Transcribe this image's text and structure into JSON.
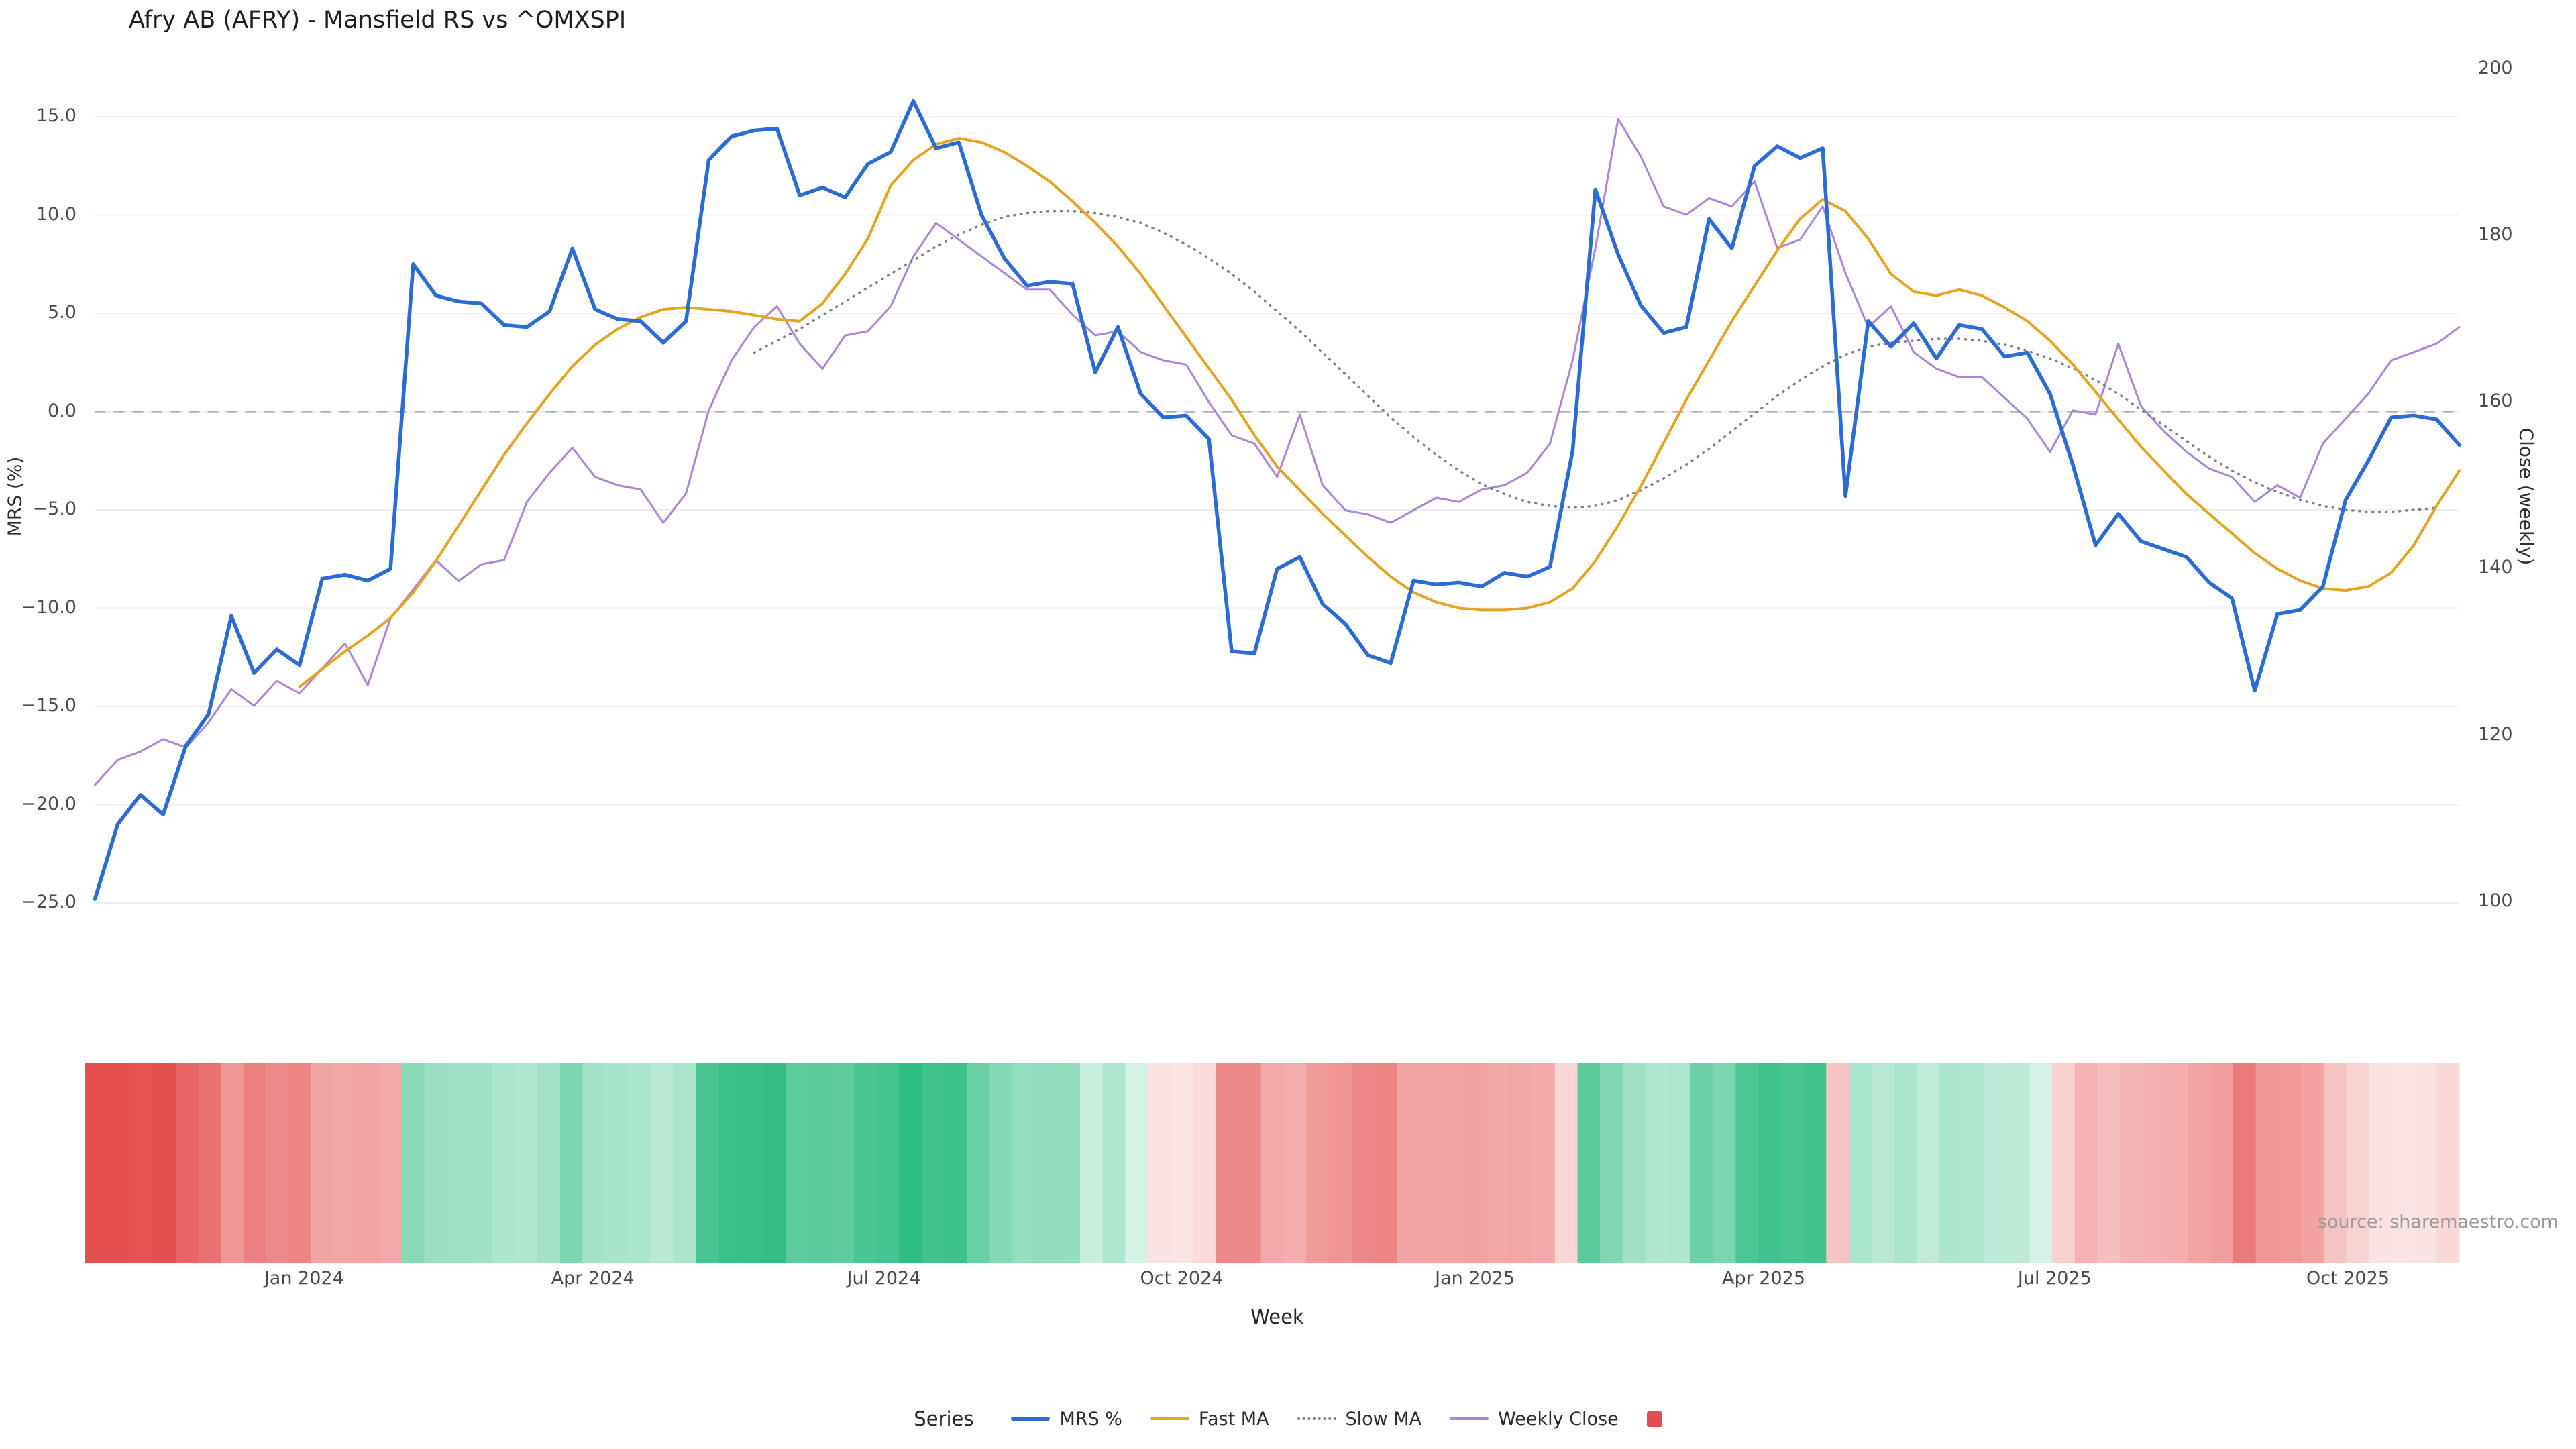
{
  "title": "Afry AB (AFRY) - Mansfield RS vs ^OMXSPI",
  "source_note": "source: sharemaestro.com",
  "legend": {
    "title": "Series",
    "items": [
      {
        "label": "MRS %",
        "swatch": "line",
        "color": "#2a6bd4",
        "thickness": 6
      },
      {
        "label": "Fast MA",
        "swatch": "line",
        "color": "#e6a323",
        "thickness": 4
      },
      {
        "label": "Slow MA",
        "swatch": "dotted-line",
        "color": "#7f7f7f",
        "thickness": 4
      },
      {
        "label": "Weekly Close",
        "swatch": "line",
        "color": "#ab85d6",
        "thickness": 4
      },
      {
        "label": "",
        "swatch": "square",
        "color": "#e04f4f",
        "thickness": 23
      }
    ]
  },
  "chart_data": {
    "type": "line",
    "title": "Afry AB (AFRY) - Mansfield RS vs ^OMXSPI",
    "xlabel": "Week",
    "x_unit": "week-index (weekly data, ~Nov 2023 to Nov 2025)",
    "x_range_weeks": [
      0,
      104
    ],
    "x_tick_weeks": [
      9.2,
      21.9,
      34.7,
      47.8,
      60.7,
      73.4,
      86.2,
      99.1
    ],
    "x_tick_labels": [
      "Jan 2024",
      "Apr 2024",
      "Jul 2024",
      "Oct 2024",
      "Jan 2025",
      "Apr 2025",
      "Jul 2025",
      "Oct 2025"
    ],
    "grid": "horizontal-only",
    "legend_position": "bottom-center",
    "left_axis": {
      "label": "MRS (%)",
      "range": [
        -26,
        16.5
      ],
      "ticks": [
        15,
        10,
        5,
        0,
        -5,
        -10,
        -15,
        -20,
        -25
      ],
      "tick_labels": [
        "15.0",
        "10.0",
        "5.0",
        "0.0",
        "−5.0",
        "−10.0",
        "−15.0",
        "−20.0",
        "−25.0"
      ],
      "zero_reference_line": 0
    },
    "right_axis": {
      "label": "Close (weekly)",
      "range": [
        98,
        202
      ],
      "ticks": [
        200,
        180,
        160,
        140,
        120,
        100
      ],
      "tick_labels": [
        "200",
        "180",
        "160",
        "140",
        "120",
        "100"
      ]
    },
    "series": [
      {
        "name": "MRS %",
        "axis": "left",
        "color": "#2a6bd4",
        "style": "solid",
        "width": 5.5,
        "values": [
          -24.8,
          -21.0,
          -19.5,
          -20.5,
          -17.0,
          -15.4,
          -10.4,
          -13.3,
          -12.1,
          -12.9,
          -8.5,
          -8.3,
          -8.6,
          -8.0,
          7.5,
          5.9,
          5.6,
          5.5,
          4.4,
          4.3,
          5.1,
          8.3,
          5.2,
          4.7,
          4.6,
          3.5,
          4.6,
          12.8,
          14.0,
          14.3,
          14.4,
          11.0,
          11.4,
          10.9,
          12.6,
          13.2,
          15.8,
          13.4,
          13.7,
          10.0,
          7.8,
          6.4,
          6.6,
          6.5,
          2.0,
          4.3,
          0.9,
          -0.3,
          -0.2,
          -1.4,
          -12.2,
          -12.3,
          -8.0,
          -7.4,
          -9.8,
          -10.8,
          -12.4,
          -12.8,
          -8.6,
          -8.8,
          -8.7,
          -8.9,
          -8.2,
          -8.4,
          -7.9,
          -2.0,
          11.3,
          8.0,
          5.4,
          4.0,
          4.3,
          9.8,
          8.3,
          12.5,
          13.5,
          12.9,
          13.4,
          -4.3,
          4.6,
          3.3,
          4.5,
          2.7,
          4.4,
          4.2,
          2.8,
          3.0,
          0.9,
          -2.7,
          -6.8,
          -5.2,
          -6.6,
          -7.0,
          -7.4,
          -8.7,
          -9.5,
          -14.2,
          -10.3,
          -10.1,
          -8.9,
          -4.5,
          -2.5,
          -0.3,
          -0.2,
          -0.4,
          -1.7
        ]
      },
      {
        "name": "Fast MA",
        "axis": "left",
        "color": "#e6a323",
        "style": "solid",
        "width": 4,
        "values": [
          null,
          null,
          null,
          null,
          null,
          null,
          null,
          null,
          null,
          -14.0,
          -13.1,
          -12.2,
          -11.4,
          -10.5,
          -9.2,
          -7.6,
          -5.8,
          -4.0,
          -2.2,
          -0.6,
          0.9,
          2.3,
          3.4,
          4.2,
          4.8,
          5.2,
          5.3,
          5.2,
          5.1,
          4.9,
          4.7,
          4.6,
          5.5,
          7.0,
          8.8,
          11.5,
          12.8,
          13.6,
          13.9,
          13.7,
          13.2,
          12.5,
          11.7,
          10.7,
          9.6,
          8.4,
          7.0,
          5.4,
          3.8,
          2.2,
          0.6,
          -1.2,
          -2.8,
          -4.0,
          -5.2,
          -6.3,
          -7.4,
          -8.4,
          -9.2,
          -9.7,
          -10.0,
          -10.1,
          -10.1,
          -10.0,
          -9.7,
          -9.0,
          -7.6,
          -5.8,
          -3.8,
          -1.6,
          0.6,
          2.6,
          4.6,
          6.4,
          8.2,
          9.8,
          10.8,
          10.2,
          8.8,
          7.0,
          6.1,
          5.9,
          6.2,
          5.9,
          5.3,
          4.6,
          3.6,
          2.4,
          1.0,
          -0.4,
          -1.8,
          -3.0,
          -4.2,
          -5.2,
          -6.2,
          -7.2,
          -8.0,
          -8.6,
          -9.0,
          -9.1,
          -8.9,
          -8.2,
          -6.8,
          -4.8,
          -3.0
        ]
      },
      {
        "name": "Slow MA",
        "axis": "left",
        "color": "#7f7f7f",
        "style": "dotted",
        "width": 3.5,
        "values": [
          null,
          null,
          null,
          null,
          null,
          null,
          null,
          null,
          null,
          null,
          null,
          null,
          null,
          null,
          null,
          null,
          null,
          null,
          null,
          null,
          null,
          null,
          null,
          null,
          null,
          null,
          null,
          null,
          null,
          3.0,
          3.6,
          4.2,
          4.9,
          5.6,
          6.3,
          7.0,
          7.7,
          8.4,
          9.0,
          9.5,
          9.9,
          10.1,
          10.2,
          10.2,
          10.1,
          9.9,
          9.6,
          9.1,
          8.5,
          7.8,
          7.0,
          6.1,
          5.1,
          4.1,
          3.0,
          1.9,
          0.8,
          -0.3,
          -1.3,
          -2.2,
          -3.0,
          -3.7,
          -4.2,
          -4.6,
          -4.8,
          -4.9,
          -4.8,
          -4.5,
          -4.0,
          -3.4,
          -2.7,
          -1.9,
          -1.0,
          -0.1,
          0.8,
          1.6,
          2.3,
          2.9,
          3.3,
          3.5,
          3.6,
          3.7,
          3.7,
          3.6,
          3.4,
          3.1,
          2.7,
          2.2,
          1.6,
          0.9,
          0.1,
          -0.7,
          -1.5,
          -2.3,
          -3.0,
          -3.6,
          -4.1,
          -4.5,
          -4.8,
          -5.0,
          -5.1,
          -5.1,
          -5.0,
          -4.9,
          null
        ]
      },
      {
        "name": "Weekly Close",
        "axis": "right",
        "color": "#ab85d6",
        "style": "solid",
        "width": 3,
        "values": [
          114,
          117,
          118,
          119.5,
          118.5,
          121.5,
          125.5,
          123.5,
          126.5,
          125,
          128,
          131,
          126,
          134,
          137.5,
          141,
          138.5,
          140.5,
          141,
          148,
          151.5,
          154.5,
          151,
          150,
          149.5,
          145.5,
          149,
          159,
          165,
          169,
          171.5,
          167,
          164,
          168,
          168.5,
          171.5,
          177.5,
          181.5,
          179.5,
          177.5,
          175.5,
          173.5,
          173.5,
          170.5,
          168,
          168.5,
          166,
          165,
          164.5,
          160,
          156,
          155,
          151,
          158.5,
          150,
          147,
          146.5,
          145.5,
          147,
          148.5,
          148,
          149.5,
          150,
          151.5,
          155,
          165,
          178.5,
          194,
          189.5,
          183.5,
          182.5,
          184.5,
          183.5,
          186.5,
          178.5,
          179.5,
          183.5,
          175.5,
          169,
          171.5,
          166,
          164,
          163,
          163,
          160.5,
          158,
          154,
          159,
          158.5,
          167,
          159.5,
          156.5,
          154,
          152,
          151,
          148,
          150,
          148.5,
          155,
          158,
          161,
          165,
          166,
          167,
          169
        ]
      }
    ],
    "heatmap_strip": {
      "derived_from": "MRS %",
      "positive_color": "#2ebd83",
      "negative_color": "#e64f4f",
      "description": "Weekly red/green intensity band below the chart: red when MRS % is negative, green when positive, intensity scales with magnitude."
    }
  }
}
